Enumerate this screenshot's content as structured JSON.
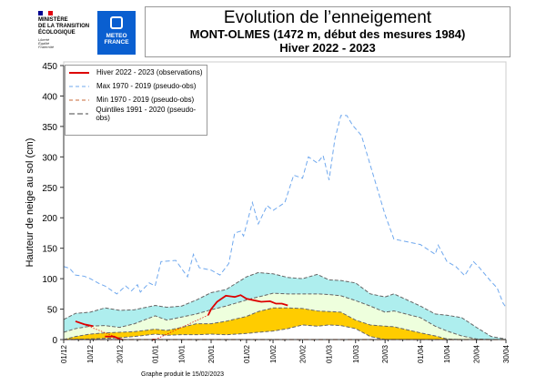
{
  "header": {
    "ministry": [
      "MINISTÈRE",
      "DE LA TRANSITION",
      "ÉCOLOGIQUE"
    ],
    "ministry_motto": [
      "Liberté",
      "Égalité",
      "Fraternité"
    ],
    "meteo_logo": [
      "METEO",
      "FRANCE"
    ],
    "title": "Evolution de l’enneigement",
    "subtitle": "MONT-OLMES (1472 m, début des mesures 1984)",
    "season": "Hiver 2022 - 2023"
  },
  "footer": "Graphe produit le 15/02/2023",
  "chart_data": {
    "type": "line",
    "ylabel": "Hauteur de neige au sol (cm)",
    "ylim": [
      0,
      450
    ],
    "yticks": [
      0,
      50,
      100,
      150,
      200,
      250,
      300,
      350,
      400,
      450
    ],
    "xticks": [
      "01/12",
      "10/12",
      "20/12",
      "01/01",
      "10/01",
      "20/01",
      "01/02",
      "10/02",
      "20/02",
      "01/03",
      "10/03",
      "20/03",
      "01/04",
      "10/04",
      "20/04",
      "30/04"
    ],
    "xlim": [
      "01/12",
      "30/04"
    ],
    "legend_position": "top-left",
    "colors": {
      "obs": "#dd0000",
      "max": "#6fa8ee",
      "min": "#c86a3a",
      "quintile": "#666666",
      "band_q1_q2": "#ffcc00",
      "band_q2_q3": "#eeffdd",
      "band_q3_q4": "#aeeeee"
    },
    "legend": [
      {
        "label": "Hiver 2022 - 2023 (observations)",
        "key": "obs"
      },
      {
        "label": "Max 1970 - 2019 (pseudo-obs)",
        "key": "max"
      },
      {
        "label": "Min 1970 - 2019 (pseudo-obs)",
        "key": "min"
      },
      {
        "label": "Quintiles 1991 - 2020 (pseudo-obs)",
        "key": "quintile"
      }
    ],
    "max": [
      [
        "01/12",
        120
      ],
      [
        "03/12",
        117
      ],
      [
        "05/12",
        106
      ],
      [
        "08/12",
        104
      ],
      [
        "10/12",
        100
      ],
      [
        "13/12",
        92
      ],
      [
        "15/12",
        88
      ],
      [
        "19/12",
        75
      ],
      [
        "22/12",
        88
      ],
      [
        "24/12",
        80
      ],
      [
        "26/12",
        90
      ],
      [
        "27/12",
        78
      ],
      [
        "30/12",
        93
      ],
      [
        "01/01",
        88
      ],
      [
        "03/01",
        128
      ],
      [
        "08/01",
        130
      ],
      [
        "12/01",
        103
      ],
      [
        "14/01",
        140
      ],
      [
        "16/01",
        118
      ],
      [
        "20/01",
        114
      ],
      [
        "23/01",
        106
      ],
      [
        "26/01",
        125
      ],
      [
        "28/01",
        175
      ],
      [
        "30/01",
        178
      ],
      [
        "31/01",
        170
      ],
      [
        "03/02",
        225
      ],
      [
        "05/02",
        190
      ],
      [
        "08/02",
        220
      ],
      [
        "10/02",
        212
      ],
      [
        "14/02",
        225
      ],
      [
        "17/02",
        270
      ],
      [
        "20/02",
        265
      ],
      [
        "22/02",
        300
      ],
      [
        "25/02",
        290
      ],
      [
        "27/02",
        302
      ],
      [
        "01/03",
        262
      ],
      [
        "03/03",
        330
      ],
      [
        "05/03",
        368
      ],
      [
        "07/03",
        368
      ],
      [
        "09/03",
        352
      ],
      [
        "12/03",
        335
      ],
      [
        "16/03",
        270
      ],
      [
        "20/03",
        205
      ],
      [
        "23/03",
        165
      ],
      [
        "01/04",
        156
      ],
      [
        "06/04",
        140
      ],
      [
        "07/04",
        155
      ],
      [
        "10/04",
        128
      ],
      [
        "13/04",
        120
      ],
      [
        "16/04",
        105
      ],
      [
        "19/04",
        128
      ],
      [
        "21/04",
        118
      ],
      [
        "25/04",
        95
      ],
      [
        "27/04",
        85
      ],
      [
        "29/04",
        60
      ],
      [
        "30/04",
        53
      ]
    ],
    "min": [
      [
        "01/12",
        0
      ],
      [
        "30/04",
        0
      ]
    ],
    "quintiles": {
      "q1": [
        [
          "01/12",
          0
        ],
        [
          "10/12",
          1
        ],
        [
          "15/12",
          2
        ],
        [
          "20/12",
          3
        ],
        [
          "25/12",
          5
        ],
        [
          "01/01",
          9
        ],
        [
          "05/01",
          7
        ],
        [
          "10/01",
          8
        ],
        [
          "15/01",
          8
        ],
        [
          "20/01",
          9
        ],
        [
          "25/01",
          8
        ],
        [
          "01/02",
          10
        ],
        [
          "05/02",
          12
        ],
        [
          "10/02",
          14
        ],
        [
          "15/02",
          18
        ],
        [
          "20/02",
          24
        ],
        [
          "25/02",
          22
        ],
        [
          "01/03",
          24
        ],
        [
          "05/03",
          23
        ],
        [
          "10/03",
          18
        ],
        [
          "15/03",
          5
        ],
        [
          "20/03",
          0
        ],
        [
          "30/04",
          0
        ]
      ],
      "q2": [
        [
          "01/12",
          0
        ],
        [
          "05/12",
          5
        ],
        [
          "10/12",
          9
        ],
        [
          "15/12",
          11
        ],
        [
          "20/12",
          12
        ],
        [
          "25/12",
          13
        ],
        [
          "01/01",
          17
        ],
        [
          "05/01",
          15
        ],
        [
          "10/01",
          20
        ],
        [
          "15/01",
          26
        ],
        [
          "20/01",
          26
        ],
        [
          "25/01",
          30
        ],
        [
          "01/02",
          38
        ],
        [
          "05/02",
          46
        ],
        [
          "10/02",
          52
        ],
        [
          "15/02",
          52
        ],
        [
          "20/02",
          51
        ],
        [
          "25/02",
          47
        ],
        [
          "01/03",
          46
        ],
        [
          "05/03",
          45
        ],
        [
          "10/03",
          32
        ],
        [
          "15/03",
          24
        ],
        [
          "20/03",
          22
        ],
        [
          "23/03",
          21
        ],
        [
          "01/04",
          11
        ],
        [
          "06/04",
          6
        ],
        [
          "10/04",
          1
        ],
        [
          "15/04",
          0
        ],
        [
          "30/04",
          0
        ]
      ],
      "q3": [
        [
          "01/12",
          12
        ],
        [
          "05/12",
          18
        ],
        [
          "10/12",
          22
        ],
        [
          "15/12",
          23
        ],
        [
          "20/12",
          20
        ],
        [
          "25/12",
          26
        ],
        [
          "01/01",
          39
        ],
        [
          "05/01",
          32
        ],
        [
          "10/01",
          37
        ],
        [
          "15/01",
          42
        ],
        [
          "20/01",
          49
        ],
        [
          "25/01",
          55
        ],
        [
          "01/02",
          65
        ],
        [
          "05/02",
          70
        ],
        [
          "10/02",
          76
        ],
        [
          "15/02",
          75
        ],
        [
          "20/02",
          75
        ],
        [
          "25/02",
          75
        ],
        [
          "01/03",
          74
        ],
        [
          "05/03",
          72
        ],
        [
          "10/03",
          64
        ],
        [
          "15/03",
          55
        ],
        [
          "20/03",
          45
        ],
        [
          "23/03",
          47
        ],
        [
          "01/04",
          36
        ],
        [
          "06/04",
          22
        ],
        [
          "10/04",
          14
        ],
        [
          "15/04",
          6
        ],
        [
          "20/04",
          1
        ],
        [
          "25/04",
          0
        ],
        [
          "30/04",
          0
        ]
      ],
      "q4": [
        [
          "01/12",
          33
        ],
        [
          "05/12",
          43
        ],
        [
          "10/12",
          45
        ],
        [
          "15/12",
          52
        ],
        [
          "20/12",
          48
        ],
        [
          "25/12",
          49
        ],
        [
          "01/01",
          56
        ],
        [
          "05/01",
          53
        ],
        [
          "10/01",
          55
        ],
        [
          "15/01",
          65
        ],
        [
          "20/01",
          77
        ],
        [
          "25/01",
          82
        ],
        [
          "01/02",
          103
        ],
        [
          "05/02",
          110
        ],
        [
          "10/02",
          108
        ],
        [
          "15/02",
          102
        ],
        [
          "20/02",
          100
        ],
        [
          "25/02",
          107
        ],
        [
          "01/03",
          98
        ],
        [
          "05/03",
          97
        ],
        [
          "10/03",
          93
        ],
        [
          "15/03",
          75
        ],
        [
          "20/03",
          70
        ],
        [
          "23/03",
          75
        ],
        [
          "01/04",
          55
        ],
        [
          "06/04",
          42
        ],
        [
          "10/04",
          40
        ],
        [
          "15/04",
          36
        ],
        [
          "20/04",
          20
        ],
        [
          "25/04",
          5
        ],
        [
          "30/04",
          1
        ]
      ]
    },
    "observations": [
      [
        [
          "05/12",
          30
        ],
        [
          "08/12",
          25
        ],
        [
          "11/12",
          22
        ]
      ],
      [
        [
          "15/12",
          5
        ],
        [
          "18/12",
          5
        ],
        [
          "20/12",
          1
        ],
        [
          "21/12",
          0
        ]
      ],
      [
        [
          "31/12",
          0
        ],
        [
          "01/01",
          0
        ]
      ],
      [
        [
          "19/01",
          40
        ],
        [
          "20/01",
          50
        ],
        [
          "22/01",
          62
        ],
        [
          "25/01",
          72
        ],
        [
          "28/01",
          70
        ],
        [
          "30/01",
          73
        ],
        [
          "01/02",
          67
        ],
        [
          "04/02",
          64
        ],
        [
          "06/02",
          62
        ],
        [
          "09/02",
          63
        ],
        [
          "11/02",
          59
        ],
        [
          "13/02",
          59
        ],
        [
          "15/02",
          56
        ]
      ]
    ],
    "observations_interpolated": [
      [
        [
          "05/12",
          30
        ],
        [
          "21/12",
          0
        ]
      ],
      [
        [
          "01/01",
          0
        ],
        [
          "19/01",
          40
        ]
      ]
    ]
  }
}
